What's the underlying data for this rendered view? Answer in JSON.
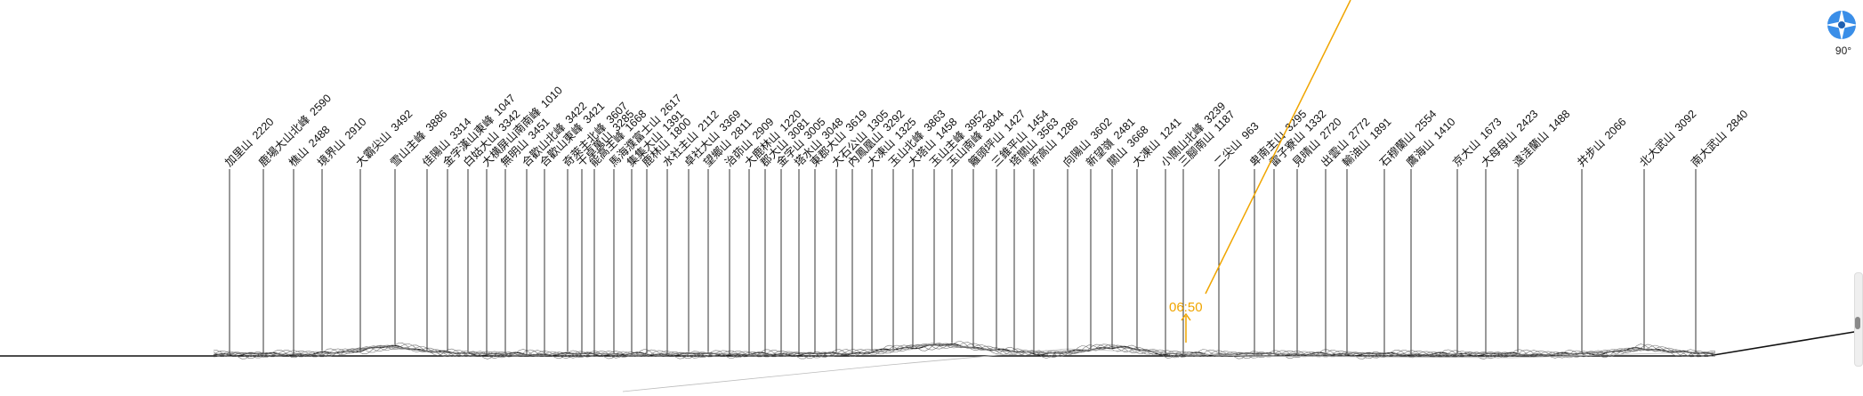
{
  "peaks": [
    {
      "name": "加里山",
      "elevation": "2220"
    },
    {
      "name": "鹿場大山北峰",
      "elevation": "2590"
    },
    {
      "name": "樵山",
      "elevation": "2488"
    },
    {
      "name": "境界山",
      "elevation": "2910"
    },
    {
      "name": "大霸尖山",
      "elevation": "3492"
    },
    {
      "name": "雪山主峰",
      "elevation": "3886"
    },
    {
      "name": "佳陽山",
      "elevation": "3314"
    },
    {
      "name": "金字漢山東峰",
      "elevation": "1047"
    },
    {
      "name": "白姑大山",
      "elevation": "3342"
    },
    {
      "name": "大横屏山南南峰",
      "elevation": "1010"
    },
    {
      "name": "無明山",
      "elevation": "3451"
    },
    {
      "name": "合歡山北峰",
      "elevation": "3422"
    },
    {
      "name": "合歡山東峰",
      "elevation": "3421"
    },
    {
      "name": "奇萊主北峰",
      "elevation": "3607"
    },
    {
      "name": "干卓萬山",
      "elevation": "3285"
    },
    {
      "name": "能高主峰",
      "elevation": "1668"
    },
    {
      "name": "馬海濮富士山",
      "elevation": "2617"
    },
    {
      "name": "集集大山",
      "elevation": "1391"
    },
    {
      "name": "鹿林山",
      "elevation": "1800"
    },
    {
      "name": "水社主山",
      "elevation": "2112"
    },
    {
      "name": "卓社大山",
      "elevation": "3369"
    },
    {
      "name": "望鄉山",
      "elevation": "2811"
    },
    {
      "name": "治茆山",
      "elevation": "2909"
    },
    {
      "name": "大鹿林山",
      "elevation": "1220"
    },
    {
      "name": "郡大山",
      "elevation": "3081"
    },
    {
      "name": "金字山",
      "elevation": "3005"
    },
    {
      "name": "塔水山",
      "elevation": "3048"
    },
    {
      "name": "東郡大山",
      "elevation": "3619"
    },
    {
      "name": "大石公山",
      "elevation": "1305"
    },
    {
      "name": "內鳳凰山",
      "elevation": "3292"
    },
    {
      "name": "大凍山",
      "elevation": "1325"
    },
    {
      "name": "玉山北峰",
      "elevation": "3863"
    },
    {
      "name": "大塔山",
      "elevation": "1458"
    },
    {
      "name": "玉山主峰",
      "elevation": "3952"
    },
    {
      "name": "玉山南峰",
      "elevation": "3844"
    },
    {
      "name": "籬頭坪山",
      "elevation": "1427"
    },
    {
      "name": "三錐平山",
      "elevation": "1454"
    },
    {
      "name": "塔關山",
      "elevation": "3563"
    },
    {
      "name": "新高山",
      "elevation": "1286"
    },
    {
      "name": "向陽山",
      "elevation": "3602"
    },
    {
      "name": "新望嶺",
      "elevation": "2481"
    },
    {
      "name": "關山",
      "elevation": "3668"
    },
    {
      "name": "大凍山",
      "elevation": "1241"
    },
    {
      "name": "小關山北峰",
      "elevation": "3239"
    },
    {
      "name": "三腳南山",
      "elevation": "1187"
    },
    {
      "name": "二尖山",
      "elevation": "963"
    },
    {
      "name": "卑南主山",
      "elevation": "3295"
    },
    {
      "name": "雷子寮山",
      "elevation": "1332"
    },
    {
      "name": "見晴山",
      "elevation": "2720"
    },
    {
      "name": "出雲山",
      "elevation": "2772"
    },
    {
      "name": "輸油山",
      "elevation": "1891"
    },
    {
      "name": "石穆蘭山",
      "elevation": "2554"
    },
    {
      "name": "鷹海山",
      "elevation": "1410"
    },
    {
      "name": "京大山",
      "elevation": "1673"
    },
    {
      "name": "大母母山",
      "elevation": "2423"
    },
    {
      "name": "遠洼蘭山",
      "elevation": "1488"
    },
    {
      "name": "井步山",
      "elevation": "2066"
    },
    {
      "name": "北大武山",
      "elevation": "3092"
    },
    {
      "name": "南大武山",
      "elevation": "2840"
    }
  ],
  "sun": {
    "time": "06:50"
  },
  "compass": {
    "icon": "compass-icon",
    "heading": "90°"
  },
  "colors": {
    "sun_path": "#f0a500",
    "ridge": "#222222",
    "labels": "#111111"
  }
}
